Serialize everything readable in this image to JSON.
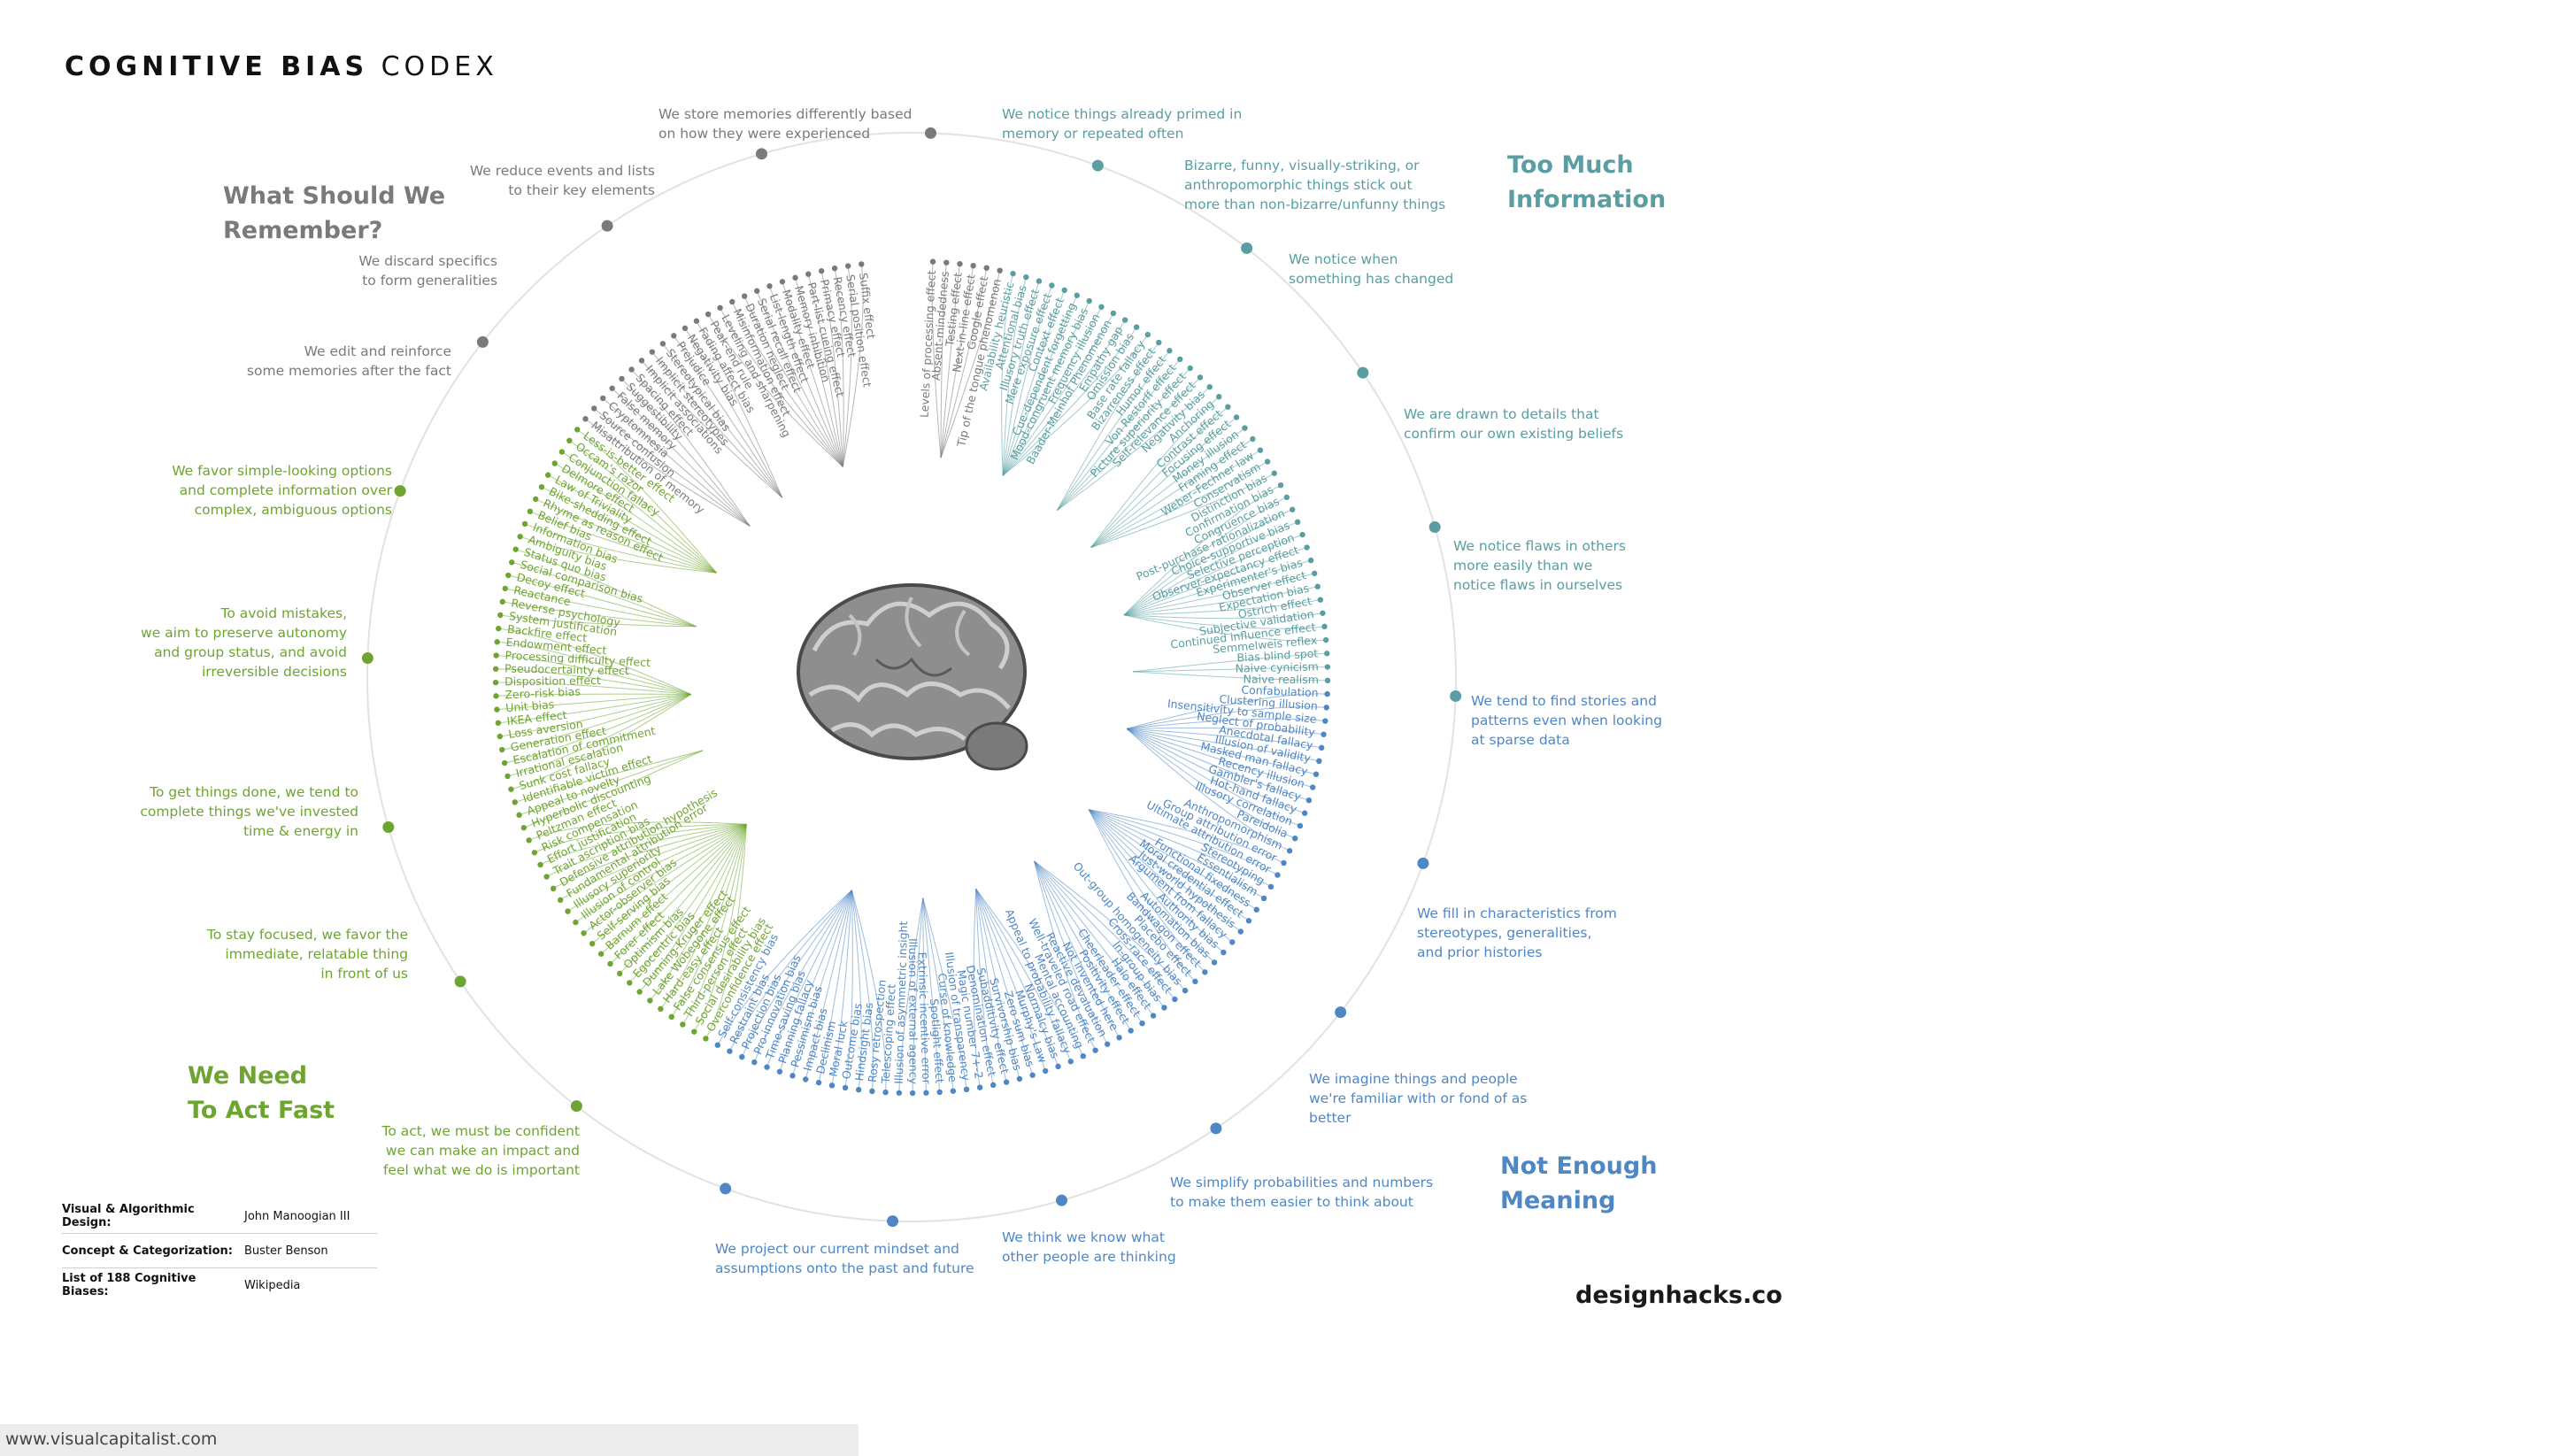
{
  "title": {
    "bold": "COGNITIVE BIAS",
    "light": "CODEX"
  },
  "quadrants": [
    {
      "title": "What Should We\nRemember?",
      "color": "#7a7a7a"
    },
    {
      "title": "Too Much\nInformation",
      "color": "#5a9ea1"
    },
    {
      "title": "Not Enough\nMeaning",
      "color": "#4f87c5"
    },
    {
      "title": "We Need\nTo Act Fast",
      "color": "#6ea531"
    }
  ],
  "groups": [
    {
      "label": [
        "We store memories differently based",
        "on how they were experienced"
      ],
      "quadrant": 0,
      "biases": [
        "Levels of processing effect",
        "Absent-mindedness",
        "Testing effect",
        "Next-in-line effect",
        "Google effect",
        "Tip of the tongue phenomenon"
      ]
    },
    {
      "label": [
        "We notice things already primed in",
        "memory or repeated often"
      ],
      "quadrant": 1,
      "biases": [
        "Availability heuristic",
        "Attentional bias",
        "Illusory truth effect",
        "Mere exposure effect",
        "Context effect",
        "Cue-dependent forgetting",
        "Mood-congruent memory bias",
        "Frequency illusion",
        "Baader-Meinhof Phenomenon",
        "Empathy gap",
        "Omission bias",
        "Base rate fallacy"
      ]
    },
    {
      "label": [
        "Bizarre, funny, visually-striking, or",
        "anthropomorphic things stick out",
        "more than non-bizarre/unfunny things"
      ],
      "quadrant": 1,
      "biases": [
        "Bizarreness effect",
        "Humor effect",
        "Von Restorff effect",
        "Picture superiority effect",
        "Self-relevance effect",
        "Negativity bias"
      ]
    },
    {
      "label": [
        "We notice when",
        "something has changed"
      ],
      "quadrant": 1,
      "biases": [
        "Anchoring",
        "Contrast effect",
        "Focusing effect",
        "Money illusion",
        "Framing effect",
        "Weber–Fechner law",
        "Conservatism",
        "Distinction bias"
      ]
    },
    {
      "label": [
        "We are drawn to details that",
        "confirm our own existing beliefs"
      ],
      "quadrant": 1,
      "biases": [
        "Confirmation bias",
        "Congruence bias",
        "Post-purchase rationalization",
        "Choice-supportive bias",
        "Selective perception",
        "Observer-expectancy effect",
        "Experimenter's bias",
        "Observer effect",
        "Expectation bias",
        "Ostrich effect",
        "Subjective validation",
        "Continued influence effect",
        "Semmelweis reflex"
      ]
    },
    {
      "label": [
        "We notice flaws in others",
        "more easily than we",
        "notice flaws in ourselves"
      ],
      "quadrant": 1,
      "biases": [
        "Bias blind spot",
        "Naive cynicism",
        "Naive realism"
      ]
    },
    {
      "label": [
        "We tend to find stories and",
        "patterns even when looking",
        "at sparse data"
      ],
      "quadrant": 2,
      "biases": [
        "Confabulation",
        "Clustering illusion",
        "Insensitivity to sample size",
        "Neglect of probability",
        "Anecdotal fallacy",
        "Illusion of validity",
        "Masked man fallacy",
        "Recency illusion",
        "Gambler's fallacy",
        "Hot-hand fallacy",
        "Illusory correlation",
        "Pareidolia",
        "Anthropomorphism"
      ]
    },
    {
      "label": [
        "We fill in characteristics from",
        "stereotypes, generalities,",
        "and prior histories"
      ],
      "quadrant": 2,
      "biases": [
        "Group attribution error",
        "Ultimate attribution error",
        "Stereotyping",
        "Essentialism",
        "Functional fixedness",
        "Moral credential effect",
        "Just-world hypothesis",
        "Argument from fallacy",
        "Authority bias",
        "Automation bias",
        "Bandwagon effect",
        "Placebo effect"
      ]
    },
    {
      "label": [
        "We imagine things and people",
        "we're familiar with or fond of as",
        "better"
      ],
      "quadrant": 2,
      "biases": [
        "Out-group homogeneity bias",
        "Cross-race effect",
        "In-group bias",
        "Halo effect",
        "Cheerleader effect",
        "Positivity effect",
        "Not invented here",
        "Reactive devaluation",
        "Well-traveled road effect"
      ]
    },
    {
      "label": [
        "We simplify probabilities and numbers",
        "to make them easier to think about"
      ],
      "quadrant": 2,
      "biases": [
        "Mental accounting",
        "Appeal to probability fallacy",
        "Normalcy bias",
        "Murphy's Law",
        "Zero sum bias",
        "Survivorship bias",
        "Subadditivity effect",
        "Denomination effect",
        "Magic number 7+-2"
      ]
    },
    {
      "label": [
        "We think we know what",
        "other people are thinking"
      ],
      "quadrant": 2,
      "biases": [
        "Illusion of transparency",
        "Curse of knowledge",
        "Spotlight effect",
        "Extrinsic incentive error",
        "Illusion of external agency",
        "Illusion of asymmetric insight"
      ]
    },
    {
      "label": [
        "We project our current mindset and",
        "assumptions onto the past and future"
      ],
      "quadrant": 2,
      "biases": [
        "Telescoping effect",
        "Rosy retrospection",
        "Hindsight bias",
        "Outcome bias",
        "Moral luck",
        "Declinism",
        "Impact bias",
        "Pessimism bias",
        "Planning fallacy",
        "Time-saving bias",
        "Pro-innovation bias",
        "Projection bias",
        "Restraint bias",
        "Self-consistency bias"
      ]
    },
    {
      "label": [
        "To act, we must be confident",
        "we can make an impact and",
        "feel what we do is important"
      ],
      "quadrant": 3,
      "biases": [
        "Overconfidence effect",
        "Social desirability bias",
        "Third-person effect",
        "False consensus effect",
        "Hard-easy effect",
        "Lake Wobegone effect",
        "Dunning-Kruger effect",
        "Egocentric bias",
        "Optimism bias",
        "Forer effect",
        "Barnum effect",
        "Self-serving bias",
        "Actor-observer bias",
        "Illusion of control",
        "Illusory superiority",
        "Fundamental attribution error",
        "Defensive attribution hypothesis",
        "Trait ascription bias",
        "Effort justification",
        "Risk compensation",
        "Peltzman effect"
      ]
    },
    {
      "label": [
        "To stay focused, we favor the",
        "immediate, relatable thing",
        "in front of us"
      ],
      "quadrant": 3,
      "biases": [
        "Hyperbolic discounting",
        "Appeal to novelty",
        "Identifiable victim effect"
      ]
    },
    {
      "label": [
        "To get things done, we tend to",
        "complete things we've invested",
        "time & energy in"
      ],
      "quadrant": 3,
      "biases": [
        "Sunk cost fallacy",
        "Irrational escalation",
        "Escalation of commitment",
        "Generation effect",
        "Loss aversion",
        "IKEA effect",
        "Unit bias",
        "Zero-risk bias",
        "Disposition effect",
        "Pseudocertainty effect",
        "Processing difficulty effect",
        "Endowment effect",
        "Backfire effect"
      ]
    },
    {
      "label": [
        "To avoid mistakes,",
        "we aim to preserve autonomy",
        "and group status, and avoid",
        "irreversible decisions"
      ],
      "quadrant": 3,
      "biases": [
        "System justification",
        "Reverse psychology",
        "Reactance",
        "Decoy effect",
        "Social comparison bias",
        "Status quo bias"
      ]
    },
    {
      "label": [
        "We favor simple-looking options",
        "and complete information over",
        "complex, ambiguous options"
      ],
      "quadrant": 3,
      "biases": [
        "Ambiguity bias",
        "Information bias",
        "Belief bias",
        "Rhyme as reason effect",
        "Bike-shedding effect",
        "Law of Triviality",
        "Delmore effect",
        "Conjunction fallacy",
        "Occam's razor",
        "Less-is-better effect"
      ]
    },
    {
      "label": [
        "We edit and reinforce",
        "some memories after the fact"
      ],
      "quadrant": 0,
      "biases": [
        "Misattribution of memory",
        "Source confusion",
        "Cryptomnesia",
        "False memory",
        "Suggestibility",
        "Spacing effect"
      ]
    },
    {
      "label": [
        "We discard specifics",
        "to form generalities"
      ],
      "quadrant": 0,
      "biases": [
        "Implicit associations",
        "Implicit stereotypes",
        "Stereotypical bias",
        "Prejudice",
        "Negativity bias",
        "Fading affect bias"
      ]
    },
    {
      "label": [
        "We reduce events and lists",
        "to their key elements"
      ],
      "quadrant": 0,
      "biases": [
        "Peak-end rule",
        "Leveling and sharpening",
        "Misinformation effect",
        "Duration neglect",
        "Serial recall effect",
        "List-length effect",
        "Modality effect",
        "Memory inhibition",
        "Part-list cueing effect",
        "Primacy effect",
        "Recency effect",
        "Serial position effect",
        "Suffix effect"
      ]
    }
  ],
  "credits": [
    {
      "role": "Visual & Algorithmic Design:",
      "name": "John Manoogian III"
    },
    {
      "role": "Concept & Categorization:",
      "name": "Buster Benson"
    },
    {
      "role": "List of 188 Cognitive Biases:",
      "name": "Wikipedia"
    }
  ],
  "brand": "designhacks.co",
  "footer": "www.visualcapitalist.com"
}
